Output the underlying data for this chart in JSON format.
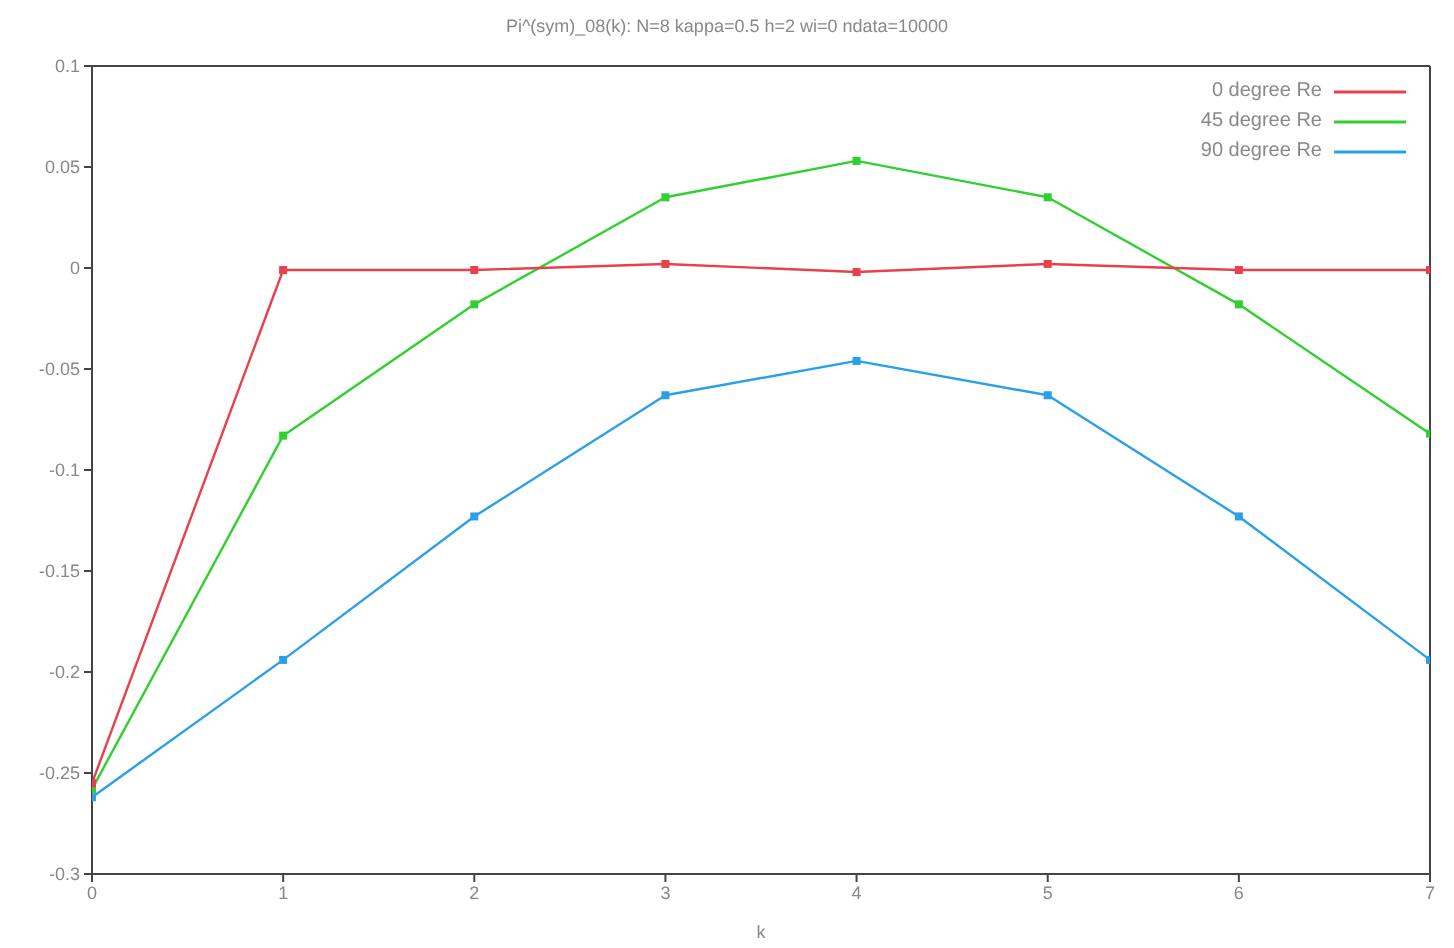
{
  "chart_data": {
    "type": "line",
    "title": "Pi^(sym)_08(k): N=8 kappa=0.5 h=2 wi=0 ndata=10000",
    "xlabel": "k",
    "x": [
      0,
      1,
      2,
      3,
      4,
      5,
      6,
      7
    ],
    "xlim": [
      0,
      7
    ],
    "xticks": [
      0,
      1,
      2,
      3,
      4,
      5,
      6,
      7
    ],
    "ylim": [
      -0.3,
      0.1
    ],
    "yticks": [
      -0.3,
      -0.25,
      -0.2,
      -0.15,
      -0.1,
      -0.05,
      0,
      0.05,
      0.1
    ],
    "series": [
      {
        "name": "0 degree Re",
        "color": "#e8404c",
        "values": [
          -0.255,
          -0.001,
          -0.001,
          0.002,
          -0.002,
          0.002,
          -0.001,
          -0.001
        ]
      },
      {
        "name": "45 degree Re",
        "color": "#30d030",
        "values": [
          -0.258,
          -0.083,
          -0.018,
          0.035,
          0.053,
          0.035,
          -0.018,
          -0.082
        ]
      },
      {
        "name": "90 degree Re",
        "color": "#2aa0e8",
        "values": [
          -0.262,
          -0.194,
          -0.123,
          -0.063,
          -0.046,
          -0.063,
          -0.123,
          -0.194
        ]
      }
    ],
    "marker": "square",
    "legend": "top right",
    "grid": false
  }
}
